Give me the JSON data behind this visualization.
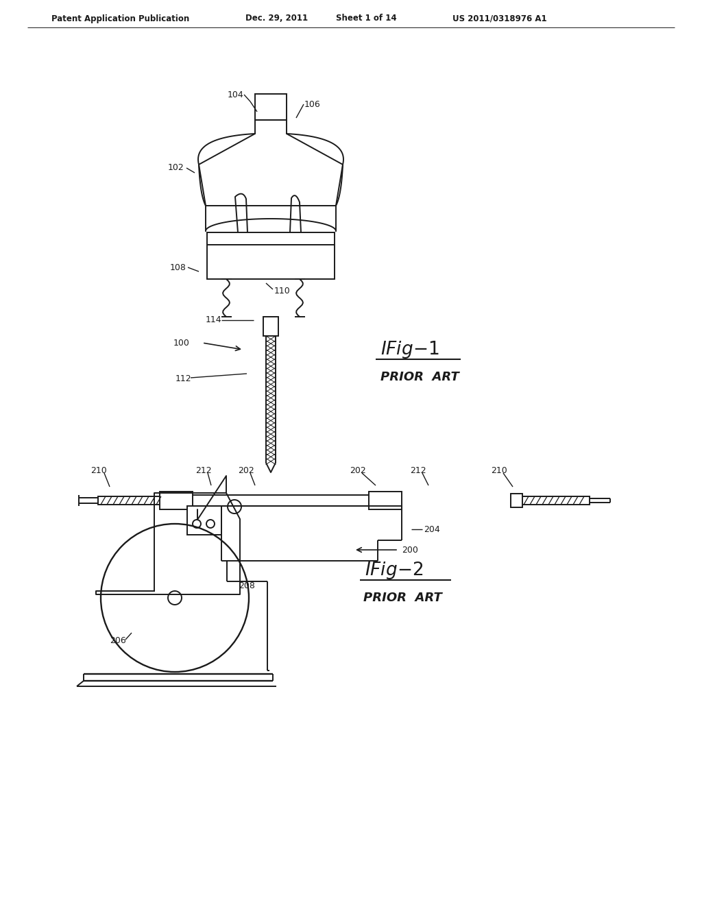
{
  "bg_color": "#ffffff",
  "line_color": "#1a1a1a",
  "header_text": "Patent Application Publication",
  "header_date": "Dec. 29, 2011",
  "header_sheet": "Sheet 1 of 14",
  "header_patent": "US 2011/0318976 A1",
  "fig1_title": "IFig-1",
  "fig1_sub": "PRIOR  ART",
  "fig2_title": "IFig-2",
  "fig2_sub": "PRIOR  ART"
}
